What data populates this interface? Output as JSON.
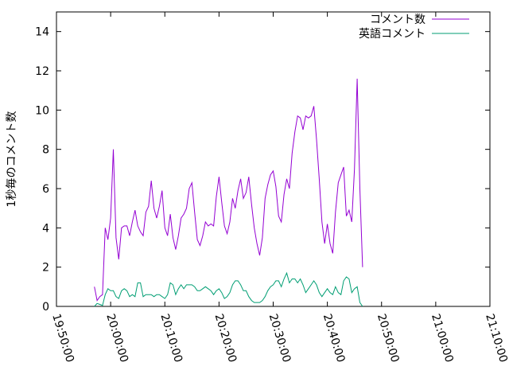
{
  "chart_data": {
    "type": "line",
    "title": "",
    "xlabel": "",
    "ylabel": "1秒毎のコメント数",
    "xlim": [
      "19:50:00",
      "21:10:00"
    ],
    "ylim": [
      0,
      15
    ],
    "x_ticks": [
      "19:50:00",
      "20:00:00",
      "20:10:00",
      "20:20:00",
      "20:30:00",
      "20:40:00",
      "20:50:00",
      "21:00:00",
      "21:10:00"
    ],
    "y_ticks": [
      "0",
      "2",
      "4",
      "6",
      "8",
      "10",
      "12",
      "14"
    ],
    "grid": false,
    "legend_position": "top-right",
    "series": [
      {
        "name": "コメント数",
        "color": "#9400d3",
        "points": [
          [
            "19:57:00",
            1.0
          ],
          [
            "19:57:30",
            0.3
          ],
          [
            "19:58:00",
            0.5
          ],
          [
            "19:58:30",
            0.6
          ],
          [
            "19:59:00",
            4.0
          ],
          [
            "19:59:30",
            3.4
          ],
          [
            "20:00:00",
            4.5
          ],
          [
            "20:00:30",
            8.0
          ],
          [
            "20:01:00",
            3.5
          ],
          [
            "20:01:30",
            2.4
          ],
          [
            "20:02:00",
            4.0
          ],
          [
            "20:02:30",
            4.1
          ],
          [
            "20:03:00",
            4.1
          ],
          [
            "20:03:30",
            3.6
          ],
          [
            "20:04:00",
            4.3
          ],
          [
            "20:04:30",
            4.9
          ],
          [
            "20:05:00",
            4.1
          ],
          [
            "20:05:30",
            3.8
          ],
          [
            "20:06:00",
            3.6
          ],
          [
            "20:06:30",
            4.8
          ],
          [
            "20:07:00",
            5.1
          ],
          [
            "20:07:30",
            6.4
          ],
          [
            "20:08:00",
            5.0
          ],
          [
            "20:08:30",
            4.5
          ],
          [
            "20:09:00",
            5.1
          ],
          [
            "20:09:30",
            5.9
          ],
          [
            "20:10:00",
            4.0
          ],
          [
            "20:10:30",
            3.6
          ],
          [
            "20:11:00",
            4.7
          ],
          [
            "20:11:30",
            3.5
          ],
          [
            "20:12:00",
            2.9
          ],
          [
            "20:12:30",
            3.6
          ],
          [
            "20:13:00",
            4.5
          ],
          [
            "20:13:30",
            4.7
          ],
          [
            "20:14:00",
            5.0
          ],
          [
            "20:14:30",
            6.0
          ],
          [
            "20:15:00",
            6.3
          ],
          [
            "20:15:30",
            4.8
          ],
          [
            "20:16:00",
            3.4
          ],
          [
            "20:16:30",
            3.1
          ],
          [
            "20:17:00",
            3.6
          ],
          [
            "20:17:30",
            4.3
          ],
          [
            "20:18:00",
            4.1
          ],
          [
            "20:18:30",
            4.2
          ],
          [
            "20:19:00",
            4.1
          ],
          [
            "20:19:30",
            5.6
          ],
          [
            "20:20:00",
            6.6
          ],
          [
            "20:20:30",
            5.3
          ],
          [
            "20:21:00",
            4.1
          ],
          [
            "20:21:30",
            3.7
          ],
          [
            "20:22:00",
            4.3
          ],
          [
            "20:22:30",
            5.5
          ],
          [
            "20:23:00",
            5.0
          ],
          [
            "20:23:30",
            5.9
          ],
          [
            "20:24:00",
            6.5
          ],
          [
            "20:24:30",
            5.5
          ],
          [
            "20:25:00",
            5.8
          ],
          [
            "20:25:30",
            6.6
          ],
          [
            "20:26:00",
            5.2
          ],
          [
            "20:26:30",
            4.0
          ],
          [
            "20:27:00",
            3.2
          ],
          [
            "20:27:30",
            2.6
          ],
          [
            "20:28:00",
            3.5
          ],
          [
            "20:28:30",
            5.5
          ],
          [
            "20:29:00",
            6.2
          ],
          [
            "20:29:30",
            6.7
          ],
          [
            "20:30:00",
            6.9
          ],
          [
            "20:30:30",
            6.1
          ],
          [
            "20:31:00",
            4.6
          ],
          [
            "20:31:30",
            4.3
          ],
          [
            "20:32:00",
            5.7
          ],
          [
            "20:32:30",
            6.5
          ],
          [
            "20:33:00",
            6.0
          ],
          [
            "20:33:30",
            7.8
          ],
          [
            "20:34:00",
            8.9
          ],
          [
            "20:34:30",
            9.7
          ],
          [
            "20:35:00",
            9.6
          ],
          [
            "20:35:30",
            9.0
          ],
          [
            "20:36:00",
            9.7
          ],
          [
            "20:36:30",
            9.6
          ],
          [
            "20:37:00",
            9.7
          ],
          [
            "20:37:30",
            10.2
          ],
          [
            "20:38:00",
            8.5
          ],
          [
            "20:38:30",
            6.5
          ],
          [
            "20:39:00",
            4.3
          ],
          [
            "20:39:30",
            3.2
          ],
          [
            "20:40:00",
            4.2
          ],
          [
            "20:40:30",
            3.2
          ],
          [
            "20:41:00",
            2.7
          ],
          [
            "20:41:30",
            4.8
          ],
          [
            "20:42:00",
            6.3
          ],
          [
            "20:42:30",
            6.7
          ],
          [
            "20:43:00",
            7.1
          ],
          [
            "20:43:30",
            4.6
          ],
          [
            "20:44:00",
            4.9
          ],
          [
            "20:44:30",
            4.3
          ],
          [
            "20:45:00",
            7.0
          ],
          [
            "20:45:30",
            11.6
          ],
          [
            "20:46:00",
            6.0
          ],
          [
            "20:46:30",
            2.0
          ]
        ]
      },
      {
        "name": "英語コメント",
        "color": "#009e73",
        "points": [
          [
            "19:57:00",
            0.0
          ],
          [
            "19:57:30",
            0.15
          ],
          [
            "19:58:00",
            0.1
          ],
          [
            "19:58:30",
            0.05
          ],
          [
            "19:59:00",
            0.6
          ],
          [
            "19:59:30",
            0.9
          ],
          [
            "20:00:00",
            0.8
          ],
          [
            "20:00:30",
            0.8
          ],
          [
            "20:01:00",
            0.5
          ],
          [
            "20:01:30",
            0.4
          ],
          [
            "20:02:00",
            0.8
          ],
          [
            "20:02:30",
            0.9
          ],
          [
            "20:03:00",
            0.8
          ],
          [
            "20:03:30",
            0.5
          ],
          [
            "20:04:00",
            0.6
          ],
          [
            "20:04:30",
            0.5
          ],
          [
            "20:05:00",
            1.2
          ],
          [
            "20:05:30",
            1.2
          ],
          [
            "20:06:00",
            0.5
          ],
          [
            "20:06:30",
            0.6
          ],
          [
            "20:07:00",
            0.6
          ],
          [
            "20:07:30",
            0.6
          ],
          [
            "20:08:00",
            0.5
          ],
          [
            "20:08:30",
            0.6
          ],
          [
            "20:09:00",
            0.6
          ],
          [
            "20:09:30",
            0.5
          ],
          [
            "20:10:00",
            0.4
          ],
          [
            "20:10:30",
            0.6
          ],
          [
            "20:11:00",
            1.2
          ],
          [
            "20:11:30",
            1.1
          ],
          [
            "20:12:00",
            0.6
          ],
          [
            "20:12:30",
            0.9
          ],
          [
            "20:13:00",
            1.1
          ],
          [
            "20:13:30",
            0.9
          ],
          [
            "20:14:00",
            1.1
          ],
          [
            "20:14:30",
            1.1
          ],
          [
            "20:15:00",
            1.1
          ],
          [
            "20:15:30",
            1.0
          ],
          [
            "20:16:00",
            0.8
          ],
          [
            "20:16:30",
            0.8
          ],
          [
            "20:17:00",
            0.9
          ],
          [
            "20:17:30",
            1.0
          ],
          [
            "20:18:00",
            0.9
          ],
          [
            "20:18:30",
            0.8
          ],
          [
            "20:19:00",
            0.6
          ],
          [
            "20:19:30",
            0.8
          ],
          [
            "20:20:00",
            0.9
          ],
          [
            "20:20:30",
            0.7
          ],
          [
            "20:21:00",
            0.4
          ],
          [
            "20:21:30",
            0.5
          ],
          [
            "20:22:00",
            0.7
          ],
          [
            "20:22:30",
            1.1
          ],
          [
            "20:23:00",
            1.3
          ],
          [
            "20:23:30",
            1.3
          ],
          [
            "20:24:00",
            1.1
          ],
          [
            "20:24:30",
            0.8
          ],
          [
            "20:25:00",
            0.8
          ],
          [
            "20:25:30",
            0.5
          ],
          [
            "20:26:00",
            0.3
          ],
          [
            "20:26:30",
            0.2
          ],
          [
            "20:27:00",
            0.2
          ],
          [
            "20:27:30",
            0.2
          ],
          [
            "20:28:00",
            0.3
          ],
          [
            "20:28:30",
            0.5
          ],
          [
            "20:29:00",
            0.8
          ],
          [
            "20:29:30",
            1.0
          ],
          [
            "20:30:00",
            1.1
          ],
          [
            "20:30:30",
            1.3
          ],
          [
            "20:31:00",
            1.3
          ],
          [
            "20:31:30",
            1.0
          ],
          [
            "20:32:00",
            1.4
          ],
          [
            "20:32:30",
            1.7
          ],
          [
            "20:33:00",
            1.2
          ],
          [
            "20:33:30",
            1.4
          ],
          [
            "20:34:00",
            1.4
          ],
          [
            "20:34:30",
            1.2
          ],
          [
            "20:35:00",
            1.4
          ],
          [
            "20:35:30",
            1.1
          ],
          [
            "20:36:00",
            0.7
          ],
          [
            "20:36:30",
            0.9
          ],
          [
            "20:37:00",
            1.1
          ],
          [
            "20:37:30",
            1.3
          ],
          [
            "20:38:00",
            1.1
          ],
          [
            "20:38:30",
            0.7
          ],
          [
            "20:39:00",
            0.5
          ],
          [
            "20:39:30",
            0.7
          ],
          [
            "20:40:00",
            0.9
          ],
          [
            "20:40:30",
            0.7
          ],
          [
            "20:41:00",
            0.6
          ],
          [
            "20:41:30",
            1.0
          ],
          [
            "20:42:00",
            0.7
          ],
          [
            "20:42:30",
            0.6
          ],
          [
            "20:43:00",
            1.3
          ],
          [
            "20:43:30",
            1.5
          ],
          [
            "20:44:00",
            1.4
          ],
          [
            "20:44:30",
            0.7
          ],
          [
            "20:45:00",
            0.9
          ],
          [
            "20:45:30",
            1.0
          ],
          [
            "20:46:00",
            0.2
          ],
          [
            "20:46:30",
            0.0
          ]
        ]
      }
    ]
  }
}
